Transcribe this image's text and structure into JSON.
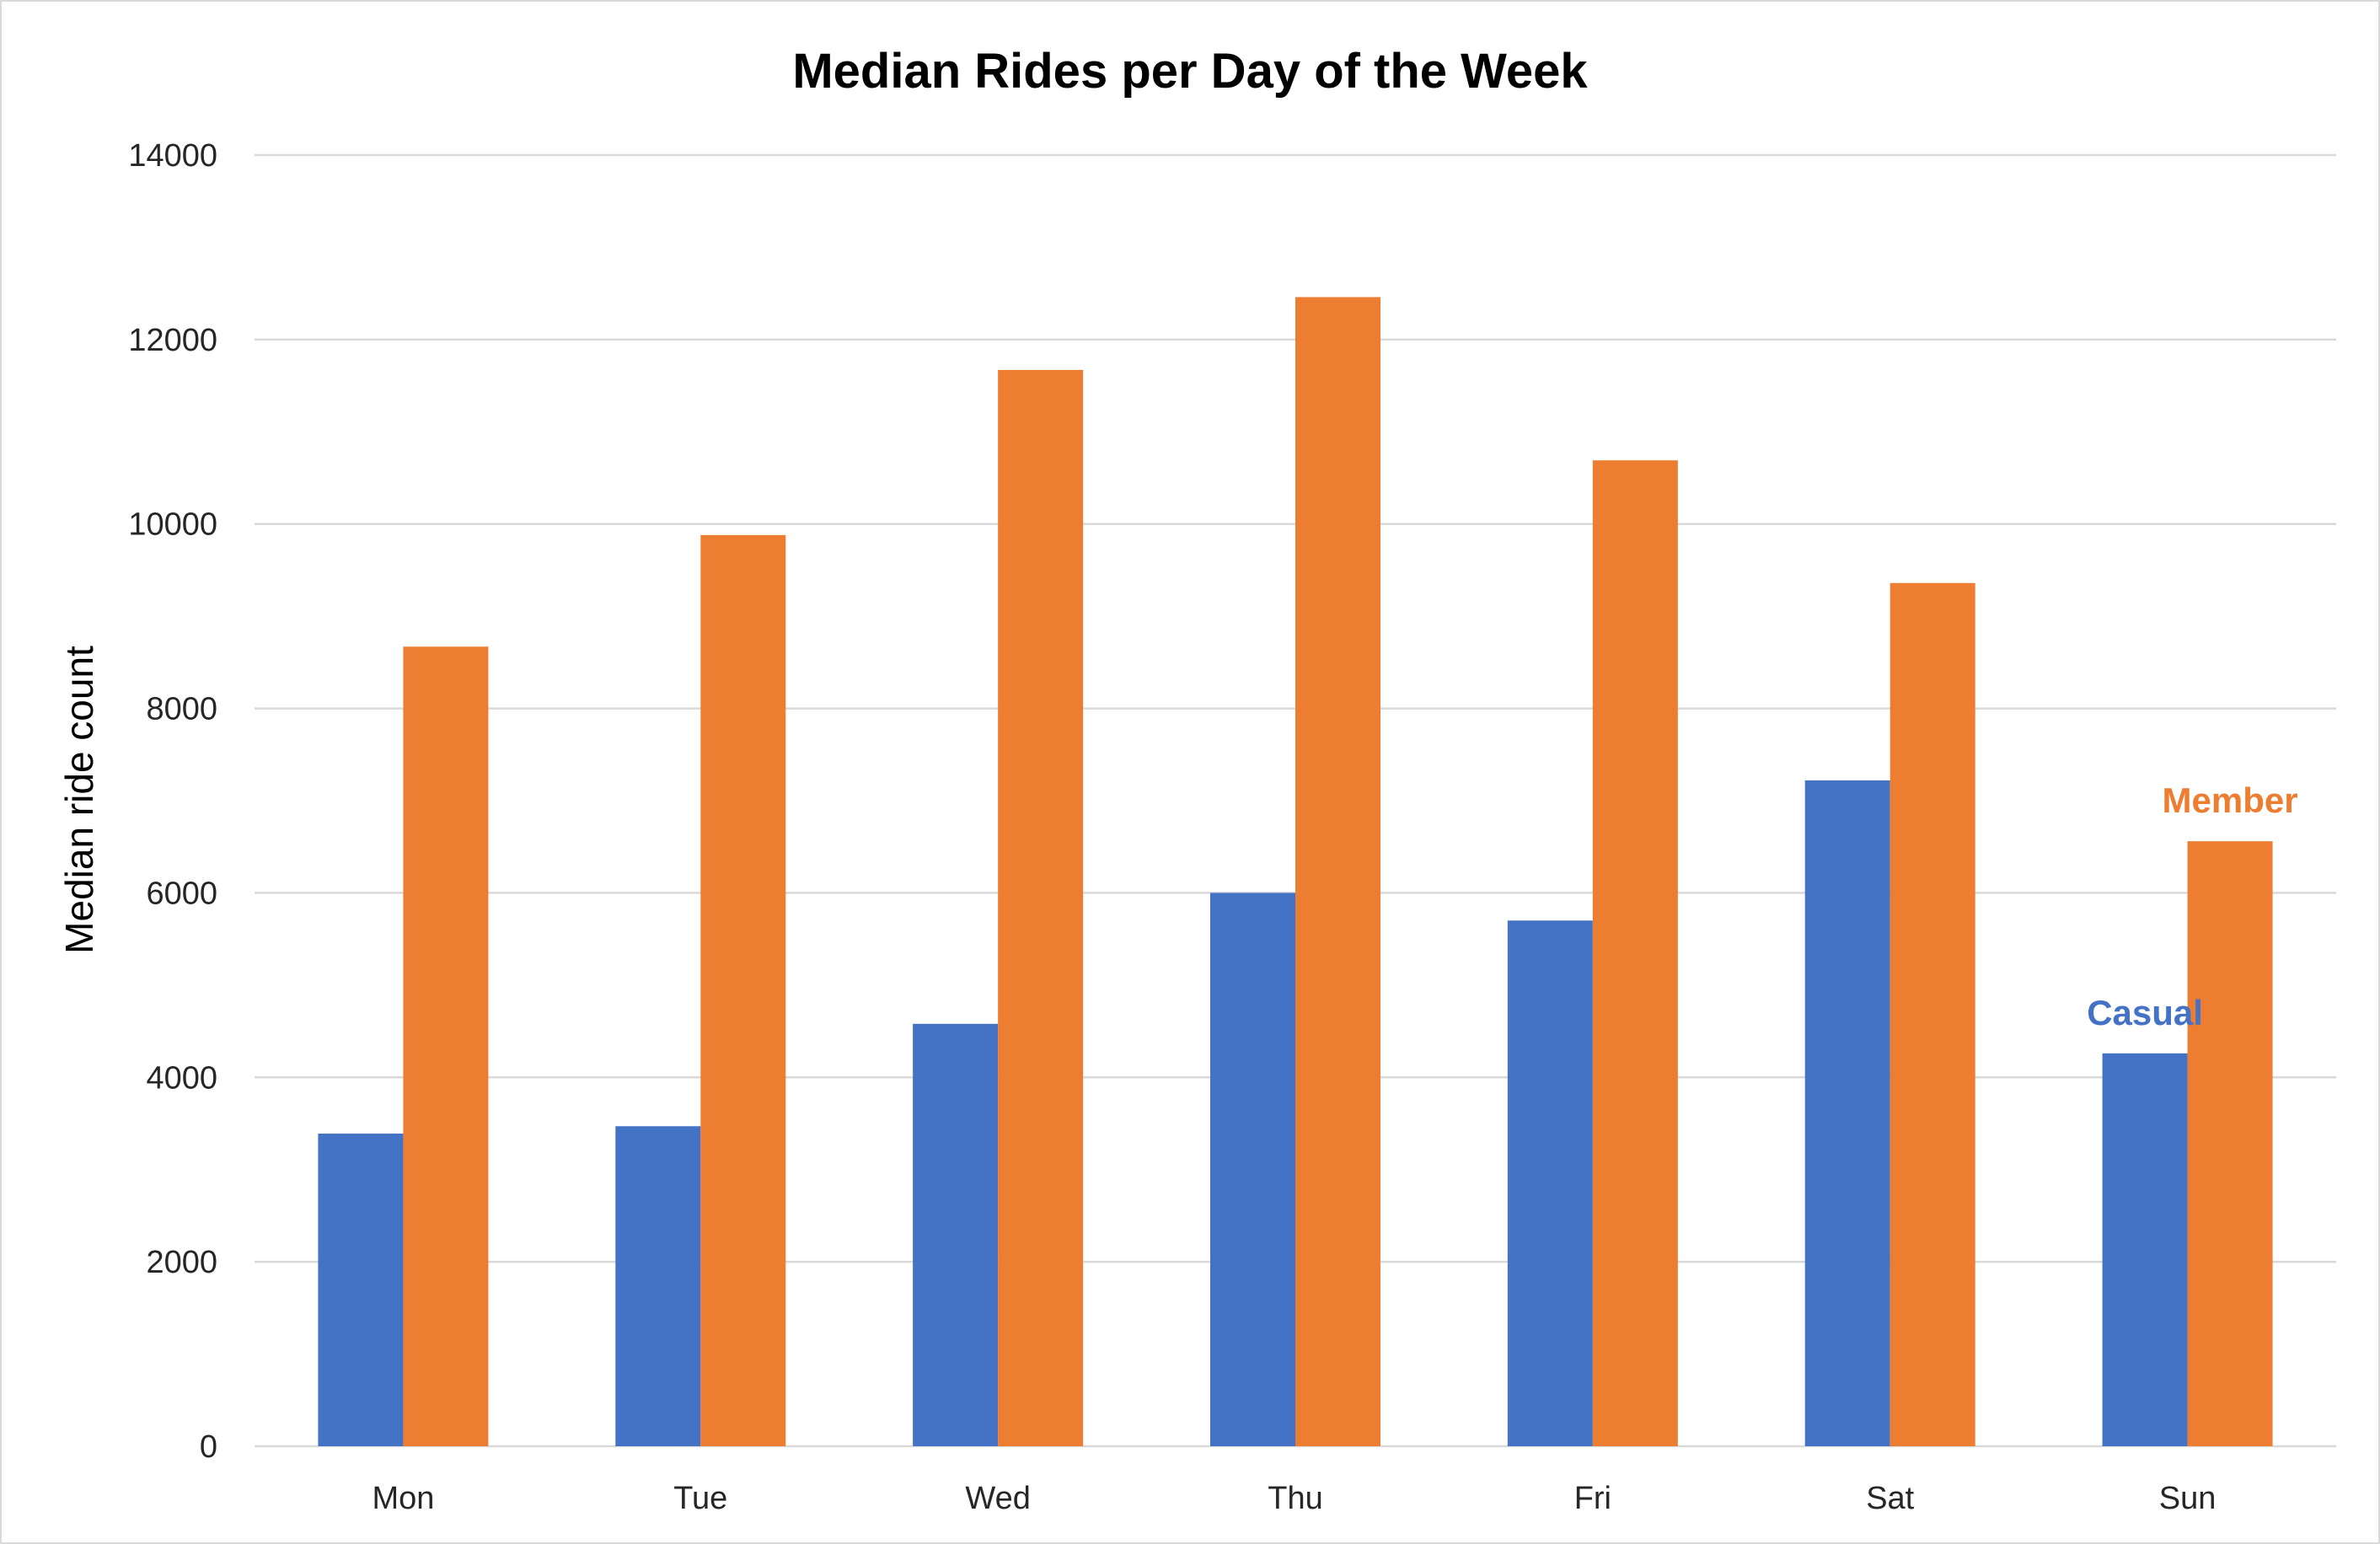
{
  "chart_data": {
    "type": "bar",
    "title": "Median Rides per Day of the Week",
    "xlabel": "",
    "ylabel": "Median ride count",
    "categories": [
      "Mon",
      "Tue",
      "Wed",
      "Thu",
      "Fri",
      "Sat",
      "Sun"
    ],
    "series": [
      {
        "name": "Casual",
        "color": "#4472C4",
        "values": [
          3390,
          3470,
          4580,
          6000,
          5700,
          7220,
          4260
        ]
      },
      {
        "name": "Member",
        "color": "#ED7D31",
        "values": [
          8670,
          9880,
          11670,
          12460,
          10690,
          9360,
          6560
        ]
      }
    ],
    "ylim": [
      0,
      14000
    ],
    "yticks": [
      0,
      2000,
      4000,
      6000,
      8000,
      10000,
      12000,
      14000
    ],
    "grid": true,
    "legend": "none; series names labelled beside the Sun bars"
  }
}
